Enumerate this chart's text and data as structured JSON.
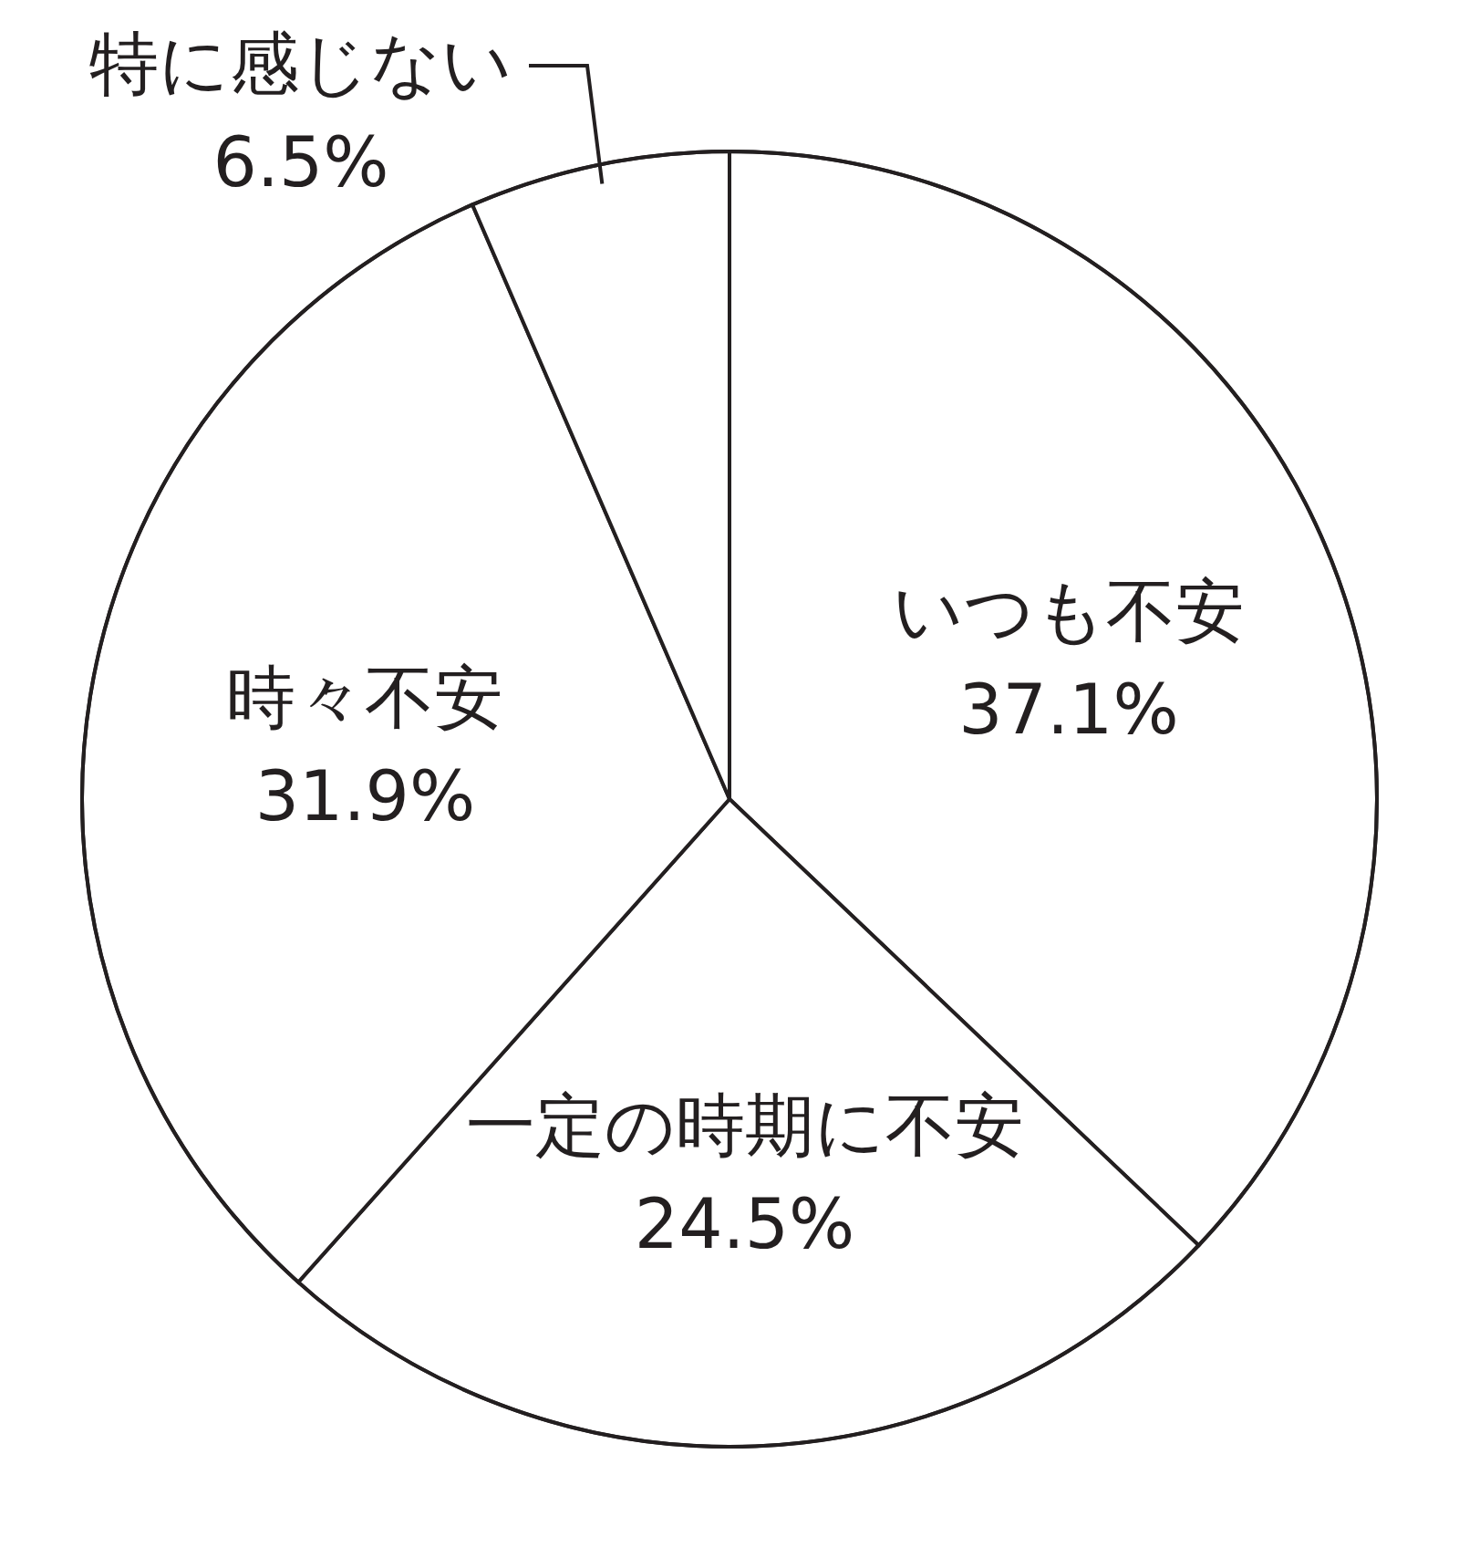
{
  "chart_data": {
    "type": "pie",
    "categories": [
      "いつも不安",
      "一定の時期に不安",
      "時々不安",
      "特に感じない"
    ],
    "values": [
      37.1,
      24.5,
      31.9,
      6.5
    ],
    "value_labels": [
      "37.1%",
      "24.5%",
      "31.9%",
      "6.5%"
    ],
    "colors": [
      "#ffffff",
      "#ffffff",
      "#ffffff",
      "#ffffff"
    ]
  }
}
